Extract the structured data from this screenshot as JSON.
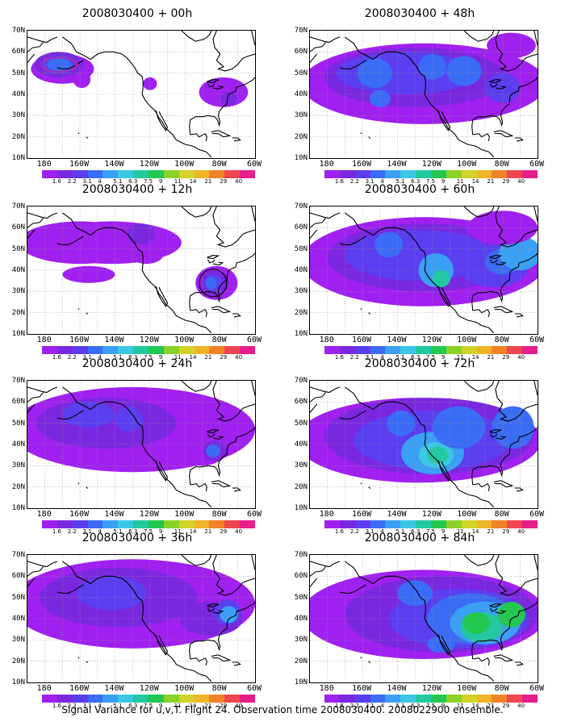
{
  "figure": {
    "caption": "Signal Variance for u,v,T. Flight 24. Observation time 2008030400. 2008022900 ensemble."
  },
  "axes": {
    "lat_labels": [
      "70N",
      "60N",
      "50N",
      "40N",
      "30N",
      "20N",
      "10N"
    ],
    "lon_labels": [
      "180",
      "160W",
      "140W",
      "120W",
      "100W",
      "80W",
      "60W"
    ],
    "lon_range": [
      170,
      300
    ],
    "lat_range": [
      10,
      70
    ],
    "grid": "dotted"
  },
  "colorbar": {
    "labels": [
      "1.6",
      "2.2",
      "3.1",
      "4",
      "5.1",
      "6.3",
      "7.5",
      "9",
      "11",
      "14",
      "21",
      "29",
      "40"
    ],
    "colors": [
      "#a020f0",
      "#7a28e0",
      "#5a3ef0",
      "#3a6cf5",
      "#3aa0f5",
      "#3ac8e6",
      "#22c8a0",
      "#22c850",
      "#8ad22a",
      "#d2d228",
      "#f0b428",
      "#f08228",
      "#f04650",
      "#e61e8c"
    ]
  },
  "panels": [
    {
      "title": "2008030400 + 00h"
    },
    {
      "title": "2008030400 + 48h"
    },
    {
      "title": "2008030400 + 12h"
    },
    {
      "title": "2008030400 + 60h"
    },
    {
      "title": "2008030400 + 24h"
    },
    {
      "title": "2008030400 + 72h"
    },
    {
      "title": "2008030400 + 36h"
    },
    {
      "title": "2008030400 + 84h"
    }
  ]
}
